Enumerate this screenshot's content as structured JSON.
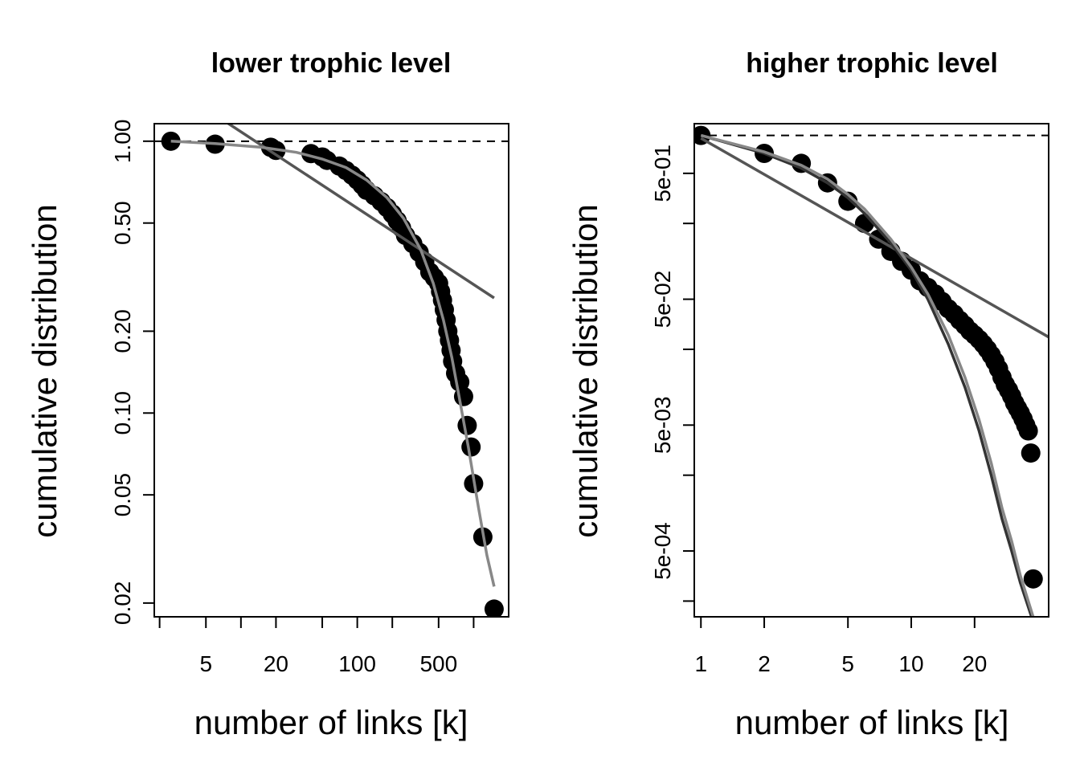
{
  "chart_data": [
    {
      "type": "scatter",
      "title": "lower trophic level",
      "xlabel": "number of links [k]",
      "ylabel": "cumulative distribution",
      "x_scale": "log",
      "y_scale": "log",
      "xlim": [
        1.8,
        2000
      ],
      "ylim": [
        0.0178,
        1.16
      ],
      "x_ticks": [
        2,
        5,
        10,
        20,
        50,
        100,
        200,
        500,
        1000
      ],
      "x_tick_labels": [
        "",
        "5",
        "",
        "20",
        "",
        "100",
        "",
        "500",
        ""
      ],
      "y_ticks": [
        0.02,
        0.05,
        0.1,
        0.2,
        0.5,
        1.0
      ],
      "y_tick_labels": [
        "0.02",
        "0.05",
        "0.10",
        "0.20",
        "0.50",
        "1.00"
      ],
      "reference_line_y": 1.0,
      "series": [
        {
          "kind": "points",
          "x": [
            2.5,
            6,
            18,
            20,
            40,
            50,
            55,
            70,
            80,
            90,
            100,
            110,
            120,
            140,
            160,
            180,
            200,
            220,
            240,
            260,
            300,
            340,
            380,
            420,
            460,
            500,
            520,
            540,
            560,
            580,
            600,
            620,
            640,
            660,
            700,
            760,
            820,
            880,
            950,
            1000,
            1200,
            1500
          ],
          "y": [
            1.0,
            0.975,
            0.95,
            0.925,
            0.9,
            0.875,
            0.85,
            0.81,
            0.78,
            0.75,
            0.72,
            0.69,
            0.66,
            0.63,
            0.6,
            0.57,
            0.54,
            0.51,
            0.48,
            0.45,
            0.42,
            0.39,
            0.36,
            0.33,
            0.315,
            0.3,
            0.28,
            0.26,
            0.24,
            0.22,
            0.2,
            0.185,
            0.17,
            0.155,
            0.14,
            0.13,
            0.115,
            0.09,
            0.075,
            0.055,
            0.035,
            0.019
          ]
        },
        {
          "kind": "line",
          "color": "#555555",
          "x": [
            6,
            1500
          ],
          "y": [
            1.25,
            0.265
          ]
        },
        {
          "kind": "line",
          "color": "#888888",
          "x": [
            2.5,
            6,
            15,
            30,
            50,
            80,
            120,
            180,
            250,
            350,
            450,
            550,
            650,
            750,
            900,
            1100,
            1300,
            1500
          ],
          "y": [
            1.0,
            0.98,
            0.95,
            0.91,
            0.86,
            0.8,
            0.72,
            0.62,
            0.52,
            0.4,
            0.3,
            0.22,
            0.16,
            0.115,
            0.075,
            0.045,
            0.03,
            0.023
          ]
        }
      ]
    },
    {
      "type": "scatter",
      "title": "higher trophic level",
      "xlabel": "number of links [k]",
      "ylabel": "cumulative distribution",
      "x_scale": "log",
      "y_scale": "log",
      "xlim": [
        0.93,
        45
      ],
      "ylim": [
        0.00015,
        1.24
      ],
      "x_ticks": [
        1,
        2,
        5,
        10,
        20
      ],
      "x_tick_labels": [
        "1",
        "2",
        "5",
        "10",
        "20"
      ],
      "y_ticks": [
        0.0002,
        0.0005,
        0.002,
        0.005,
        0.02,
        0.05,
        0.2,
        0.5
      ],
      "y_tick_labels": [
        "",
        "5e-04",
        "",
        "5e-03",
        "",
        "5e-02",
        "",
        "5e-01"
      ],
      "reference_line_y": 1.0,
      "series": [
        {
          "kind": "points",
          "x": [
            1,
            2,
            3,
            4,
            5,
            6,
            7,
            8,
            9,
            10,
            11,
            12,
            13,
            14,
            15,
            16,
            17,
            18,
            19,
            20,
            21,
            22,
            23,
            24,
            25,
            26,
            27,
            28,
            29,
            30,
            31,
            32,
            33,
            34,
            35,
            36,
            37,
            38
          ],
          "y": [
            1.0,
            0.72,
            0.6,
            0.42,
            0.3,
            0.2,
            0.15,
            0.12,
            0.1,
            0.085,
            0.07,
            0.062,
            0.055,
            0.048,
            0.042,
            0.038,
            0.034,
            0.031,
            0.028,
            0.026,
            0.024,
            0.022,
            0.02,
            0.018,
            0.016,
            0.014,
            0.012,
            0.0105,
            0.0095,
            0.0085,
            0.0075,
            0.0068,
            0.0062,
            0.0056,
            0.005,
            0.0045,
            0.003,
            0.0003
          ]
        },
        {
          "kind": "line",
          "color": "#555555",
          "x": [
            1,
            45
          ],
          "y": [
            0.95,
            0.025
          ]
        },
        {
          "kind": "line",
          "color": "#333333",
          "x": [
            1,
            2,
            3,
            4,
            5,
            6,
            8,
            10,
            12,
            15,
            18,
            21,
            24,
            27,
            30,
            33,
            36,
            39
          ],
          "y": [
            1.0,
            0.72,
            0.55,
            0.42,
            0.32,
            0.24,
            0.14,
            0.085,
            0.05,
            0.022,
            0.01,
            0.0045,
            0.002,
            0.0009,
            0.0005,
            0.00028,
            0.00018,
            0.00012
          ]
        },
        {
          "kind": "line",
          "color": "#888888",
          "x": [
            1,
            2,
            3,
            4,
            5,
            6,
            8,
            10,
            12,
            15,
            18,
            21,
            24,
            27,
            30,
            33,
            36,
            39
          ],
          "y": [
            1.0,
            0.74,
            0.58,
            0.45,
            0.34,
            0.26,
            0.15,
            0.09,
            0.055,
            0.026,
            0.012,
            0.0055,
            0.0025,
            0.0011,
            0.0006,
            0.00032,
            0.0002,
            0.00013
          ]
        }
      ]
    }
  ]
}
